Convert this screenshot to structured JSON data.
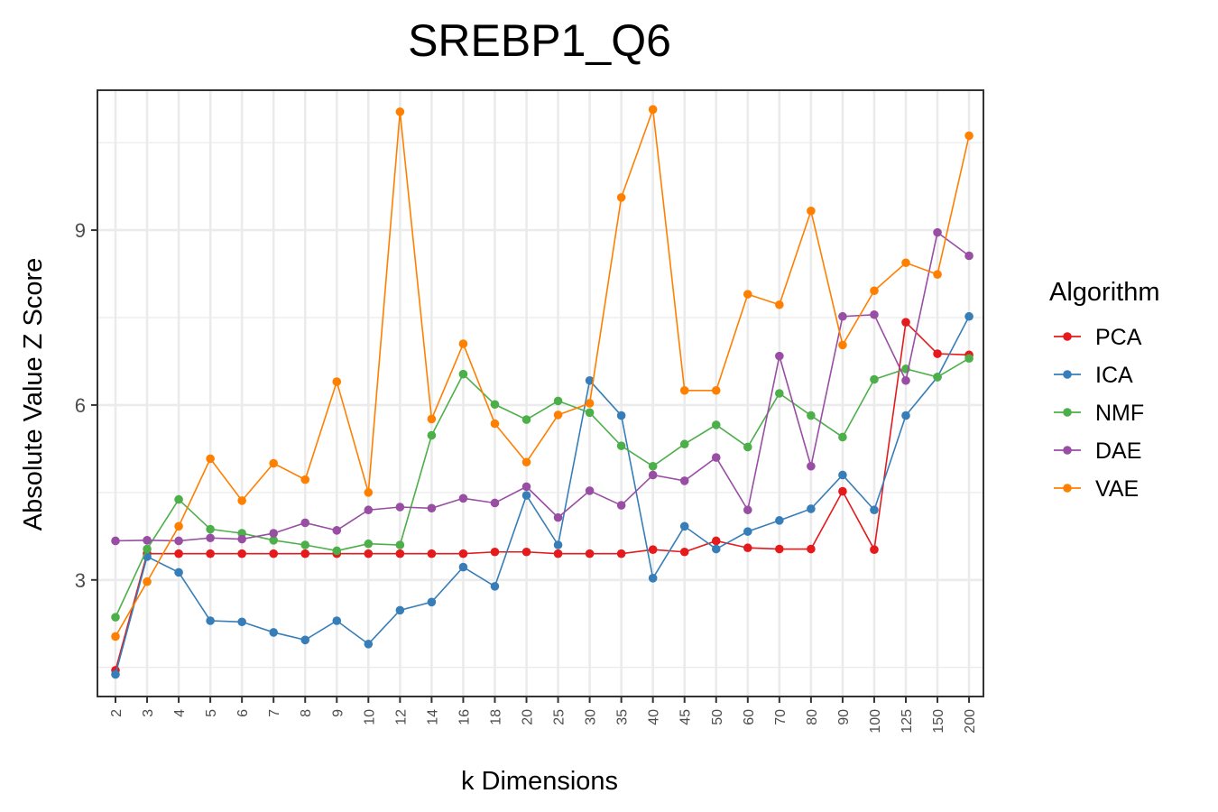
{
  "chart_data": {
    "type": "line",
    "title": "SREBP1_Q6",
    "xlabel": "k Dimensions",
    "ylabel": "Absolute Value Z Score",
    "categories": [
      "2",
      "3",
      "4",
      "5",
      "6",
      "7",
      "8",
      "9",
      "10",
      "12",
      "14",
      "16",
      "18",
      "20",
      "25",
      "30",
      "35",
      "40",
      "45",
      "50",
      "60",
      "70",
      "80",
      "90",
      "100",
      "125",
      "150",
      "200"
    ],
    "ylim": [
      1.0,
      11.4
    ],
    "yticks": [
      3,
      6,
      9
    ],
    "grid": true,
    "legend": {
      "title": "Algorithm",
      "placement": "right"
    },
    "series": [
      {
        "name": "PCA",
        "color": "#e41a1c",
        "values": [
          1.45,
          3.45,
          3.45,
          3.45,
          3.45,
          3.45,
          3.45,
          3.45,
          3.45,
          3.45,
          3.45,
          3.45,
          3.48,
          3.48,
          3.45,
          3.45,
          3.45,
          3.52,
          3.48,
          3.67,
          3.55,
          3.53,
          3.53,
          4.52,
          3.52,
          7.42,
          6.88,
          6.86
        ]
      },
      {
        "name": "ICA",
        "color": "#377eb8",
        "values": [
          1.38,
          3.4,
          3.13,
          2.3,
          2.28,
          2.1,
          1.97,
          2.3,
          1.9,
          2.48,
          2.62,
          3.22,
          2.89,
          4.45,
          3.6,
          6.42,
          5.82,
          3.03,
          3.92,
          3.53,
          3.83,
          4.02,
          4.22,
          4.8,
          4.2,
          5.82,
          6.48,
          7.52
        ]
      },
      {
        "name": "NMF",
        "color": "#4daf4a",
        "values": [
          2.36,
          3.53,
          4.38,
          3.87,
          3.8,
          3.68,
          3.6,
          3.5,
          3.62,
          3.6,
          5.48,
          6.53,
          6.01,
          5.75,
          6.07,
          5.87,
          5.3,
          4.95,
          5.33,
          5.66,
          5.28,
          6.2,
          5.82,
          5.45,
          6.44,
          6.62,
          6.48,
          6.8
        ]
      },
      {
        "name": "DAE",
        "color": "#984ea3",
        "values": [
          3.67,
          3.68,
          3.67,
          3.72,
          3.7,
          3.8,
          3.98,
          3.85,
          4.2,
          4.25,
          4.23,
          4.4,
          4.32,
          4.6,
          4.07,
          4.53,
          4.28,
          4.8,
          4.7,
          5.1,
          4.2,
          6.84,
          4.95,
          7.52,
          7.55,
          6.42,
          8.96,
          8.56
        ]
      },
      {
        "name": "VAE",
        "color": "#ff7f00",
        "values": [
          2.03,
          2.97,
          3.92,
          5.08,
          4.36,
          5.0,
          4.72,
          6.4,
          4.5,
          11.03,
          5.76,
          7.05,
          5.68,
          5.02,
          5.83,
          6.03,
          9.56,
          11.07,
          6.25,
          6.25,
          7.9,
          7.72,
          9.33,
          7.03,
          7.96,
          8.44,
          8.24,
          10.62
        ]
      }
    ]
  }
}
